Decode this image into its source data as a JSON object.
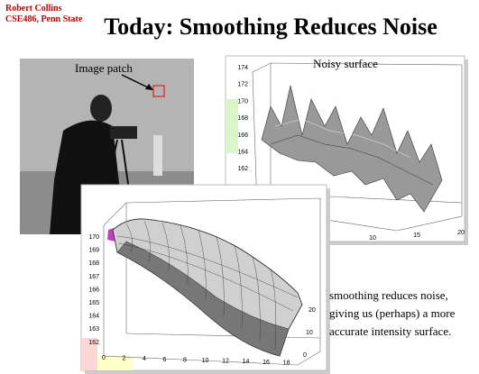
{
  "header": {
    "author": "Robert Collins",
    "course": "CSE486, Penn State",
    "title": "Today: Smoothing Reduces Noise"
  },
  "image_figure": {
    "label": "Image patch"
  },
  "noisy_plot": {
    "title": "Noisy surface",
    "yticks": [
      "174",
      "172",
      "170",
      "168",
      "166",
      "164",
      "162"
    ],
    "xticks": [
      "10",
      "15",
      "20"
    ]
  },
  "smooth_plot": {
    "yticks": [
      "170",
      "169",
      "168",
      "167",
      "166",
      "165",
      "164",
      "163",
      "162"
    ],
    "xticks": [
      "0",
      "2",
      "4",
      "6",
      "8",
      "10",
      "12",
      "14",
      "16",
      "18"
    ],
    "zticks": [
      "20",
      "10",
      "0"
    ]
  },
  "caption": {
    "lines": [
      "smoothing reduces noise,",
      "giving us (perhaps) a more",
      "accurate intensity surface."
    ]
  }
}
